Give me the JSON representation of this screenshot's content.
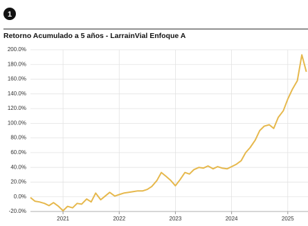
{
  "badge": "1",
  "chart_data": {
    "type": "line",
    "title": "Retorno Acumulado a 5 años - LarrainVial Enfoque A",
    "x": [
      2020.42,
      2020.5,
      2020.58,
      2020.67,
      2020.75,
      2020.83,
      2020.92,
      2021,
      2021.08,
      2021.17,
      2021.25,
      2021.33,
      2021.42,
      2021.5,
      2021.58,
      2021.67,
      2021.75,
      2021.83,
      2021.92,
      2022,
      2022.08,
      2022.17,
      2022.25,
      2022.33,
      2022.42,
      2022.5,
      2022.58,
      2022.67,
      2022.75,
      2022.83,
      2022.92,
      2023,
      2023.08,
      2023.17,
      2023.25,
      2023.33,
      2023.42,
      2023.5,
      2023.58,
      2023.67,
      2023.75,
      2023.83,
      2023.92,
      2024,
      2024.08,
      2024.17,
      2024.25,
      2024.33,
      2024.42,
      2024.5,
      2024.58,
      2024.67,
      2024.75,
      2024.83,
      2024.92,
      2025,
      2025.08,
      2025.17,
      2025.25,
      2025.33
    ],
    "series": [
      {
        "name": "LarrainVial Enfoque A",
        "color": "#e6b84c",
        "values": [
          -1,
          -6,
          -7,
          -9,
          -12,
          -8,
          -13,
          -19,
          -13,
          -15,
          -9,
          -10,
          -3,
          -7,
          5,
          -4,
          1,
          6,
          1,
          3,
          5,
          6,
          7,
          8,
          8,
          10,
          14,
          22,
          33,
          28,
          22,
          15,
          23,
          33,
          31,
          37,
          40,
          39,
          42,
          38,
          41,
          39,
          38,
          41,
          44,
          49,
          60,
          67,
          77,
          90,
          96,
          98,
          93,
          108,
          117,
          133,
          146,
          158,
          193,
          170
        ]
      }
    ],
    "xlim": [
      2020.42,
      2025.36
    ],
    "xticks": [
      2021,
      2022,
      2023,
      2024,
      2025
    ],
    "ylim": [
      -20,
      200
    ],
    "yticks": [
      {
        "value": -20,
        "label": "-20.0%"
      },
      {
        "value": 0,
        "label": "0.0%"
      },
      {
        "value": 20,
        "label": "20.0%"
      },
      {
        "value": 40,
        "label": "40.0%"
      },
      {
        "value": 60,
        "label": "60.0%"
      },
      {
        "value": 80,
        "label": "80.0%"
      },
      {
        "value": 100,
        "label": "100.0%"
      },
      {
        "value": 120,
        "label": "120.0%"
      },
      {
        "value": 140,
        "label": "140.0%"
      },
      {
        "value": 160,
        "label": "160.0%"
      },
      {
        "value": 180,
        "label": "180.0%"
      },
      {
        "value": 200,
        "label": "200.0%"
      }
    ],
    "grid": true
  }
}
